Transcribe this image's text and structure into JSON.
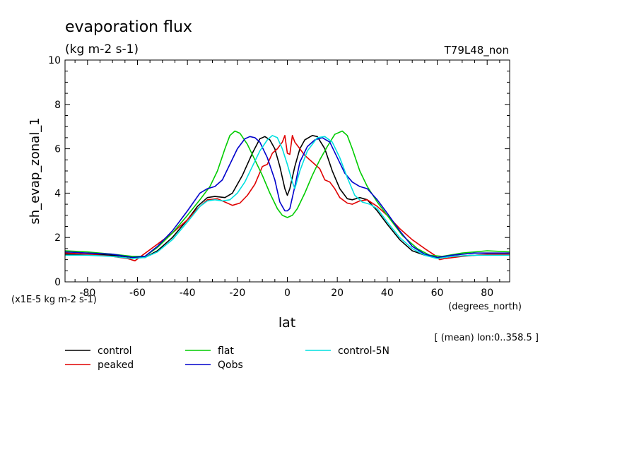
{
  "chart_data": {
    "type": "line",
    "title": "evaporation flux",
    "subtitle": "(kg m-2 s-1)",
    "run_label": "T79L48_non",
    "ylabel": "sh_evap_zonal_1",
    "y_scale_note": "(x1E-5 kg m-2 s-1)",
    "xlabel": "lat",
    "x_units": "(degrees_north)",
    "footnote": "[ (mean) lon:0..358.5 ]",
    "xlim": [
      -89,
      89
    ],
    "ylim": [
      0,
      10
    ],
    "x_ticks": [
      -80,
      -60,
      -40,
      -20,
      0,
      20,
      40,
      60,
      80
    ],
    "x_tick_labels": [
      "-80",
      "-60",
      "-40",
      "-20",
      "0",
      "20",
      "40",
      "60",
      "80"
    ],
    "y_ticks": [
      0,
      2,
      4,
      6,
      8,
      10
    ],
    "y_tick_labels": [
      "0",
      "2",
      "4",
      "6",
      "8",
      "10"
    ],
    "grid": false,
    "legend_position": "bottom",
    "series": [
      {
        "name": "control",
        "color": "#000000",
        "points": [
          [
            -89,
            1.25
          ],
          [
            -80,
            1.25
          ],
          [
            -70,
            1.2
          ],
          [
            -62,
            1.1
          ],
          [
            -57,
            1.1
          ],
          [
            -52,
            1.4
          ],
          [
            -46,
            2.0
          ],
          [
            -40,
            2.8
          ],
          [
            -36,
            3.4
          ],
          [
            -32,
            3.8
          ],
          [
            -29,
            3.85
          ],
          [
            -25,
            3.8
          ],
          [
            -22,
            4.0
          ],
          [
            -18,
            4.8
          ],
          [
            -14,
            5.8
          ],
          [
            -11,
            6.45
          ],
          [
            -9,
            6.55
          ],
          [
            -7,
            6.4
          ],
          [
            -5,
            6.0
          ],
          [
            -3,
            5.2
          ],
          [
            -1,
            4.2
          ],
          [
            0,
            3.9
          ],
          [
            1,
            4.2
          ],
          [
            3,
            5.2
          ],
          [
            5,
            6.0
          ],
          [
            7,
            6.4
          ],
          [
            10,
            6.6
          ],
          [
            12,
            6.55
          ],
          [
            15,
            6.0
          ],
          [
            18,
            5.0
          ],
          [
            21,
            4.2
          ],
          [
            24,
            3.75
          ],
          [
            26,
            3.7
          ],
          [
            29,
            3.8
          ],
          [
            32,
            3.7
          ],
          [
            36,
            3.2
          ],
          [
            40,
            2.6
          ],
          [
            45,
            1.9
          ],
          [
            50,
            1.4
          ],
          [
            55,
            1.2
          ],
          [
            60,
            1.1
          ],
          [
            66,
            1.15
          ],
          [
            75,
            1.2
          ],
          [
            89,
            1.25
          ]
        ]
      },
      {
        "name": "peaked",
        "color": "#e00000",
        "points": [
          [
            -89,
            1.3
          ],
          [
            -80,
            1.25
          ],
          [
            -70,
            1.15
          ],
          [
            -64,
            1.05
          ],
          [
            -61,
            0.95
          ],
          [
            -58,
            1.2
          ],
          [
            -52,
            1.7
          ],
          [
            -46,
            2.2
          ],
          [
            -40,
            2.8
          ],
          [
            -36,
            3.3
          ],
          [
            -32,
            3.7
          ],
          [
            -28,
            3.75
          ],
          [
            -25,
            3.6
          ],
          [
            -22,
            3.45
          ],
          [
            -19,
            3.55
          ],
          [
            -16,
            3.9
          ],
          [
            -13,
            4.4
          ],
          [
            -10,
            5.2
          ],
          [
            -8,
            5.3
          ],
          [
            -6,
            5.8
          ],
          [
            -4,
            6.0
          ],
          [
            -2,
            6.3
          ],
          [
            -1,
            6.6
          ],
          [
            0,
            5.8
          ],
          [
            1,
            5.75
          ],
          [
            2,
            6.6
          ],
          [
            3,
            6.3
          ],
          [
            5,
            6.0
          ],
          [
            7,
            5.7
          ],
          [
            9,
            5.5
          ],
          [
            11,
            5.3
          ],
          [
            13,
            5.1
          ],
          [
            15,
            4.6
          ],
          [
            17,
            4.5
          ],
          [
            19,
            4.2
          ],
          [
            21,
            3.8
          ],
          [
            24,
            3.55
          ],
          [
            26,
            3.5
          ],
          [
            29,
            3.65
          ],
          [
            32,
            3.7
          ],
          [
            36,
            3.4
          ],
          [
            40,
            3.0
          ],
          [
            45,
            2.4
          ],
          [
            50,
            1.9
          ],
          [
            55,
            1.5
          ],
          [
            59,
            1.2
          ],
          [
            61,
            1.0
          ],
          [
            63,
            1.05
          ],
          [
            70,
            1.15
          ],
          [
            80,
            1.25
          ],
          [
            89,
            1.25
          ]
        ]
      },
      {
        "name": "flat",
        "color": "#00cc00",
        "points": [
          [
            -89,
            1.4
          ],
          [
            -80,
            1.35
          ],
          [
            -70,
            1.25
          ],
          [
            -62,
            1.15
          ],
          [
            -57,
            1.15
          ],
          [
            -52,
            1.55
          ],
          [
            -46,
            2.2
          ],
          [
            -40,
            3.0
          ],
          [
            -35,
            3.7
          ],
          [
            -31,
            4.3
          ],
          [
            -28,
            5.0
          ],
          [
            -25,
            6.0
          ],
          [
            -23,
            6.6
          ],
          [
            -21,
            6.8
          ],
          [
            -19,
            6.7
          ],
          [
            -16,
            6.2
          ],
          [
            -13,
            5.5
          ],
          [
            -10,
            4.8
          ],
          [
            -7,
            4.0
          ],
          [
            -4,
            3.3
          ],
          [
            -2,
            3.0
          ],
          [
            0,
            2.9
          ],
          [
            2,
            3.0
          ],
          [
            4,
            3.3
          ],
          [
            7,
            4.0
          ],
          [
            10,
            4.8
          ],
          [
            13,
            5.5
          ],
          [
            16,
            6.1
          ],
          [
            19,
            6.65
          ],
          [
            22,
            6.8
          ],
          [
            24,
            6.6
          ],
          [
            26,
            6.0
          ],
          [
            29,
            5.0
          ],
          [
            32,
            4.3
          ],
          [
            36,
            3.6
          ],
          [
            40,
            3.0
          ],
          [
            46,
            2.1
          ],
          [
            52,
            1.5
          ],
          [
            57,
            1.2
          ],
          [
            62,
            1.15
          ],
          [
            70,
            1.3
          ],
          [
            80,
            1.4
          ],
          [
            89,
            1.35
          ]
        ]
      },
      {
        "name": "Qobs",
        "color": "#0000cc",
        "points": [
          [
            -89,
            1.35
          ],
          [
            -80,
            1.3
          ],
          [
            -70,
            1.25
          ],
          [
            -62,
            1.1
          ],
          [
            -57,
            1.15
          ],
          [
            -52,
            1.6
          ],
          [
            -46,
            2.3
          ],
          [
            -40,
            3.2
          ],
          [
            -35,
            4.0
          ],
          [
            -32,
            4.2
          ],
          [
            -29,
            4.3
          ],
          [
            -26,
            4.6
          ],
          [
            -23,
            5.3
          ],
          [
            -20,
            6.0
          ],
          [
            -17,
            6.45
          ],
          [
            -15,
            6.55
          ],
          [
            -13,
            6.5
          ],
          [
            -11,
            6.3
          ],
          [
            -8,
            5.6
          ],
          [
            -5,
            4.6
          ],
          [
            -3,
            3.6
          ],
          [
            -1,
            3.2
          ],
          [
            0,
            3.2
          ],
          [
            1,
            3.3
          ],
          [
            3,
            4.3
          ],
          [
            5,
            5.4
          ],
          [
            8,
            6.1
          ],
          [
            11,
            6.4
          ],
          [
            14,
            6.5
          ],
          [
            17,
            6.3
          ],
          [
            20,
            5.6
          ],
          [
            23,
            4.9
          ],
          [
            26,
            4.5
          ],
          [
            29,
            4.3
          ],
          [
            32,
            4.2
          ],
          [
            36,
            3.7
          ],
          [
            40,
            3.1
          ],
          [
            45,
            2.3
          ],
          [
            50,
            1.6
          ],
          [
            55,
            1.25
          ],
          [
            60,
            1.1
          ],
          [
            66,
            1.2
          ],
          [
            75,
            1.3
          ],
          [
            89,
            1.3
          ]
        ]
      },
      {
        "name": "control-5N",
        "color": "#00e0e0",
        "points": [
          [
            -89,
            1.2
          ],
          [
            -80,
            1.2
          ],
          [
            -70,
            1.15
          ],
          [
            -62,
            1.05
          ],
          [
            -57,
            1.1
          ],
          [
            -52,
            1.35
          ],
          [
            -46,
            1.9
          ],
          [
            -40,
            2.7
          ],
          [
            -35,
            3.4
          ],
          [
            -32,
            3.65
          ],
          [
            -29,
            3.7
          ],
          [
            -26,
            3.65
          ],
          [
            -23,
            3.7
          ],
          [
            -20,
            4.0
          ],
          [
            -17,
            4.5
          ],
          [
            -14,
            5.2
          ],
          [
            -11,
            5.9
          ],
          [
            -8,
            6.4
          ],
          [
            -6,
            6.6
          ],
          [
            -4,
            6.5
          ],
          [
            -2,
            6.0
          ],
          [
            0,
            5.3
          ],
          [
            2,
            4.5
          ],
          [
            3,
            4.2
          ],
          [
            5,
            5.0
          ],
          [
            8,
            5.9
          ],
          [
            12,
            6.5
          ],
          [
            15,
            6.55
          ],
          [
            18,
            6.3
          ],
          [
            21,
            5.6
          ],
          [
            24,
            4.7
          ],
          [
            27,
            3.9
          ],
          [
            30,
            3.6
          ],
          [
            33,
            3.5
          ],
          [
            36,
            3.3
          ],
          [
            40,
            2.7
          ],
          [
            45,
            2.0
          ],
          [
            50,
            1.5
          ],
          [
            55,
            1.2
          ],
          [
            60,
            1.05
          ],
          [
            66,
            1.15
          ],
          [
            75,
            1.2
          ],
          [
            89,
            1.2
          ]
        ]
      }
    ]
  }
}
